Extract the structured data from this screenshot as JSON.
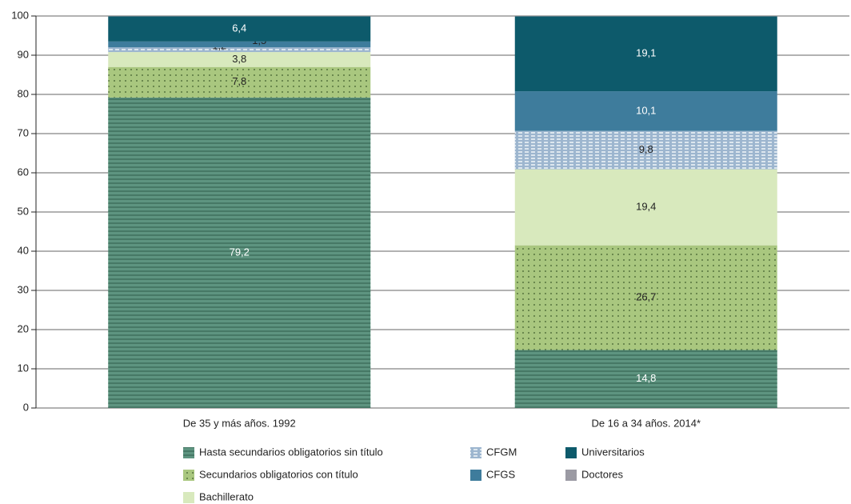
{
  "chart_data": {
    "type": "stacked_bar",
    "categories": [
      "De 35 y más años. 1992",
      "De 16 a 34 años. 2014*"
    ],
    "series": [
      {
        "name": "Hasta secundarios obligatorios sin título",
        "color": "#5e9480",
        "pattern": "hlines",
        "values": [
          79.2,
          14.8
        ],
        "value_labels": [
          "79,2",
          "14,8"
        ]
      },
      {
        "name": "Secundarios obligatorios con título",
        "color": "#a9c77f",
        "pattern": "dots",
        "values": [
          7.8,
          26.7
        ],
        "value_labels": [
          "7,8",
          "26,7"
        ]
      },
      {
        "name": "Bachillerato",
        "color": "#d8e9bd",
        "pattern": "none",
        "values": [
          3.8,
          19.4
        ],
        "value_labels": [
          "3,8",
          "19,4"
        ]
      },
      {
        "name": "CFGM",
        "color": "#9db6cf",
        "pattern": "dashes",
        "values": [
          1.2,
          9.8
        ],
        "value_labels": [
          "1,2",
          "9,8"
        ]
      },
      {
        "name": "CFGS",
        "color": "#3e7c9c",
        "pattern": "none",
        "values": [
          1.5,
          10.1
        ],
        "value_labels": [
          "1,5",
          "10,1"
        ]
      },
      {
        "name": "Universitarios",
        "color": "#0d5a6b",
        "pattern": "none",
        "values": [
          6.4,
          19.1
        ],
        "value_labels": [
          "6,4",
          "19,1"
        ]
      },
      {
        "name": "Doctores",
        "color": "#9b9aa3",
        "pattern": "none",
        "values": [
          0.1,
          0.1
        ]
      }
    ],
    "ylim": [
      0,
      100
    ],
    "yticks": [
      0,
      10,
      20,
      30,
      40,
      50,
      60,
      70,
      80,
      90,
      100
    ],
    "grid": true
  }
}
